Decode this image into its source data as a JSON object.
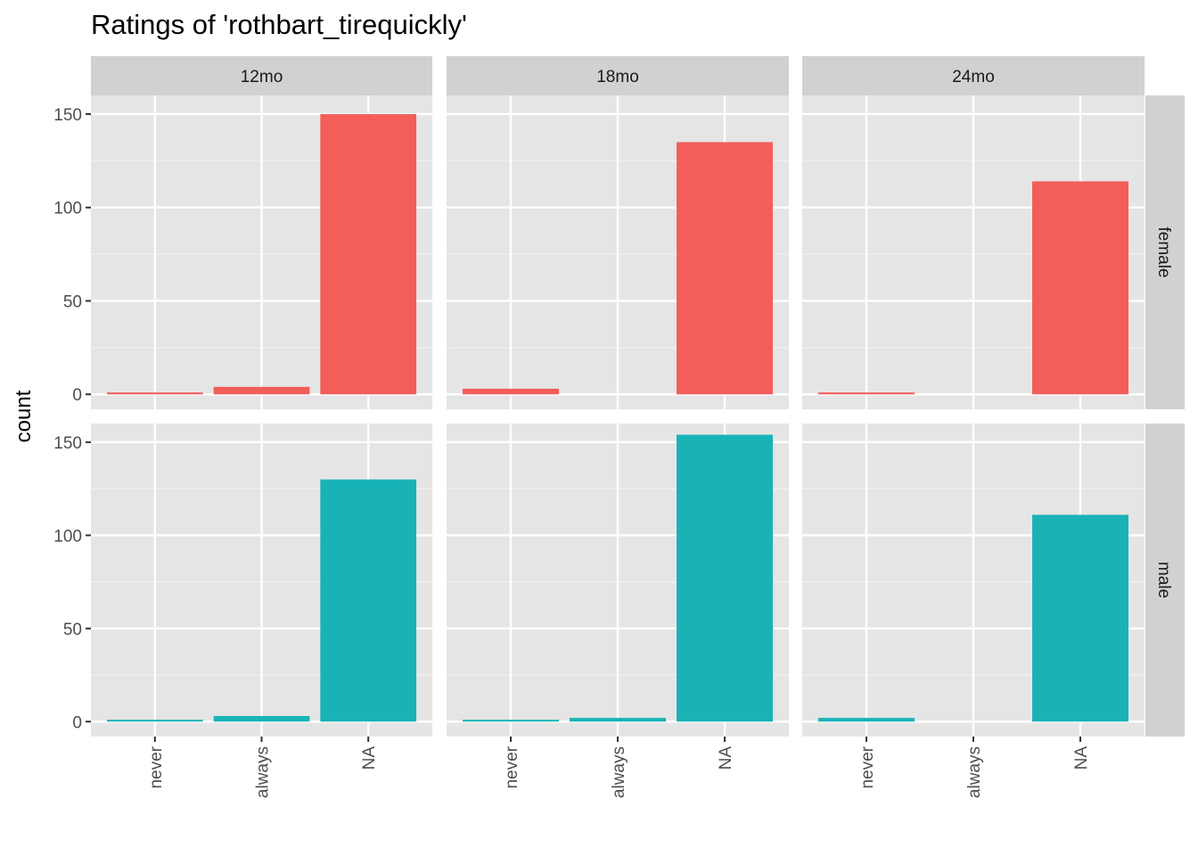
{
  "chart_data": {
    "type": "bar",
    "title": "Ratings of 'rothbart_tirequickly'",
    "xlabel": "",
    "ylabel": "count",
    "categories": [
      "never",
      "always",
      "NA"
    ],
    "facet_columns": [
      "12mo",
      "18mo",
      "24mo"
    ],
    "facet_rows": [
      "female",
      "male"
    ],
    "ylim": [
      -8,
      160
    ],
    "yticks": [
      0,
      50,
      100,
      150
    ],
    "grid": true,
    "legend": "none",
    "colors": {
      "female": "#F35E5A",
      "male": "#19B3B7",
      "panel_bg": "#E5E5E5",
      "strip_bg": "#D1D1D1"
    },
    "panels": [
      {
        "row": "female",
        "col": "12mo",
        "values": [
          1,
          4,
          150
        ]
      },
      {
        "row": "female",
        "col": "18mo",
        "values": [
          3,
          0,
          135
        ]
      },
      {
        "row": "female",
        "col": "24mo",
        "values": [
          1,
          0,
          114
        ]
      },
      {
        "row": "male",
        "col": "12mo",
        "values": [
          1,
          3,
          130
        ]
      },
      {
        "row": "male",
        "col": "18mo",
        "values": [
          1,
          2,
          154
        ]
      },
      {
        "row": "male",
        "col": "24mo",
        "values": [
          2,
          0,
          111
        ]
      }
    ]
  }
}
